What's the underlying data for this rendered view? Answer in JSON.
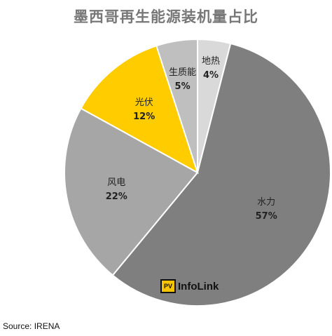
{
  "chart_data": {
    "type": "pie",
    "title": "墨西哥再生能源装机量占比",
    "slices": [
      {
        "label": "地热",
        "value": 4,
        "value_label": "4%",
        "color": "#d9d9d9"
      },
      {
        "label": "水力",
        "value": 57,
        "value_label": "57%",
        "color": "#7f7f7f"
      },
      {
        "label": "风电",
        "value": 22,
        "value_label": "22%",
        "color": "#a6a6a6"
      },
      {
        "label": "光伏",
        "value": 12,
        "value_label": "12%",
        "color": "#ffcc00"
      },
      {
        "label": "生质能",
        "value": 5,
        "value_label": "5%",
        "color": "#bfbfbf"
      }
    ],
    "start": "12 o'clock",
    "direction": "clockwise"
  },
  "logo": {
    "badge": "PV",
    "text": "InfoLink"
  },
  "source": "Source: IRENA"
}
